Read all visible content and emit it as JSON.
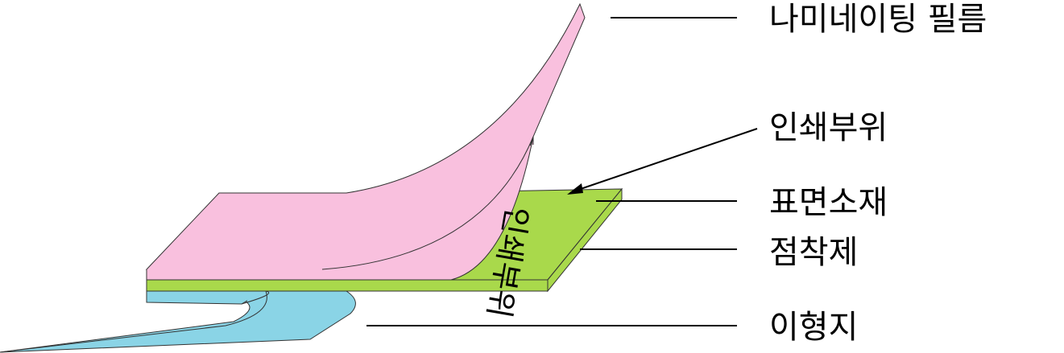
{
  "labels": {
    "laminating_film": "나미네이팅 필름",
    "print_area": "인쇄부위",
    "surface_material": "표면소재",
    "adhesive": "점착제",
    "release_paper": "이형지"
  },
  "printed_text": "인쇄부위",
  "colors": {
    "film": "#f9c0de",
    "surface": "#a9d94b",
    "release": "#8ad4e6"
  }
}
